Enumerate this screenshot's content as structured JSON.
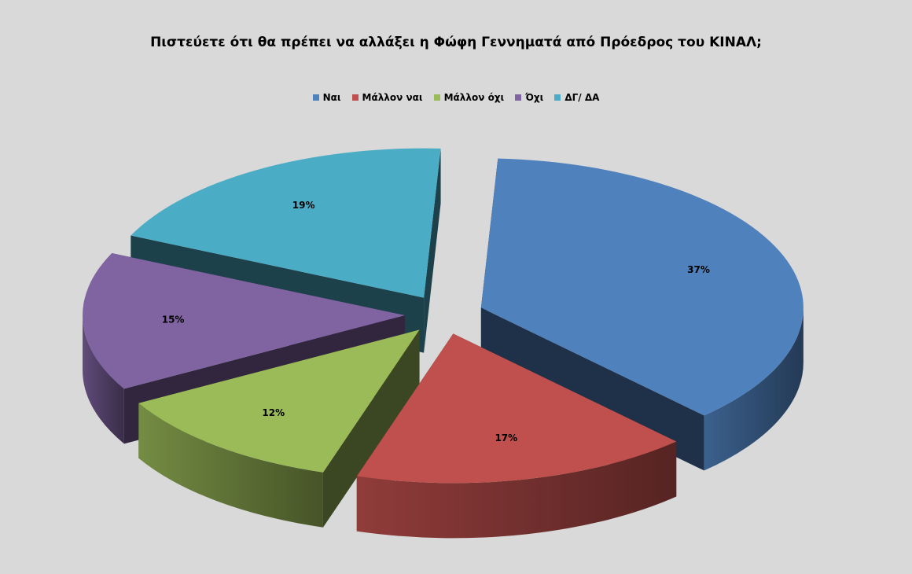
{
  "chart_data": {
    "type": "pie",
    "title": "Πιστεύετε ότι θα πρέπει να αλλάξει η Φώφη Γεννηματά από Πρόεδρος του ΚΙΝΑΛ;",
    "legend_position": "top",
    "exploded": true,
    "three_d": true,
    "slices": [
      {
        "label": "Ναι",
        "value": 37,
        "display": "37%",
        "color": "#4f81bd"
      },
      {
        "label": "Μάλλον ναι",
        "value": 17,
        "display": "17%",
        "color": "#c0504d"
      },
      {
        "label": "Μάλλον όχι",
        "value": 12,
        "display": "12%",
        "color": "#9bbb59"
      },
      {
        "label": "Όχι",
        "value": 15,
        "display": "15%",
        "color": "#8064a2"
      },
      {
        "label": "ΔΓ/ ΔΑ",
        "value": 19,
        "display": "19%",
        "color": "#4bacc6"
      }
    ]
  }
}
